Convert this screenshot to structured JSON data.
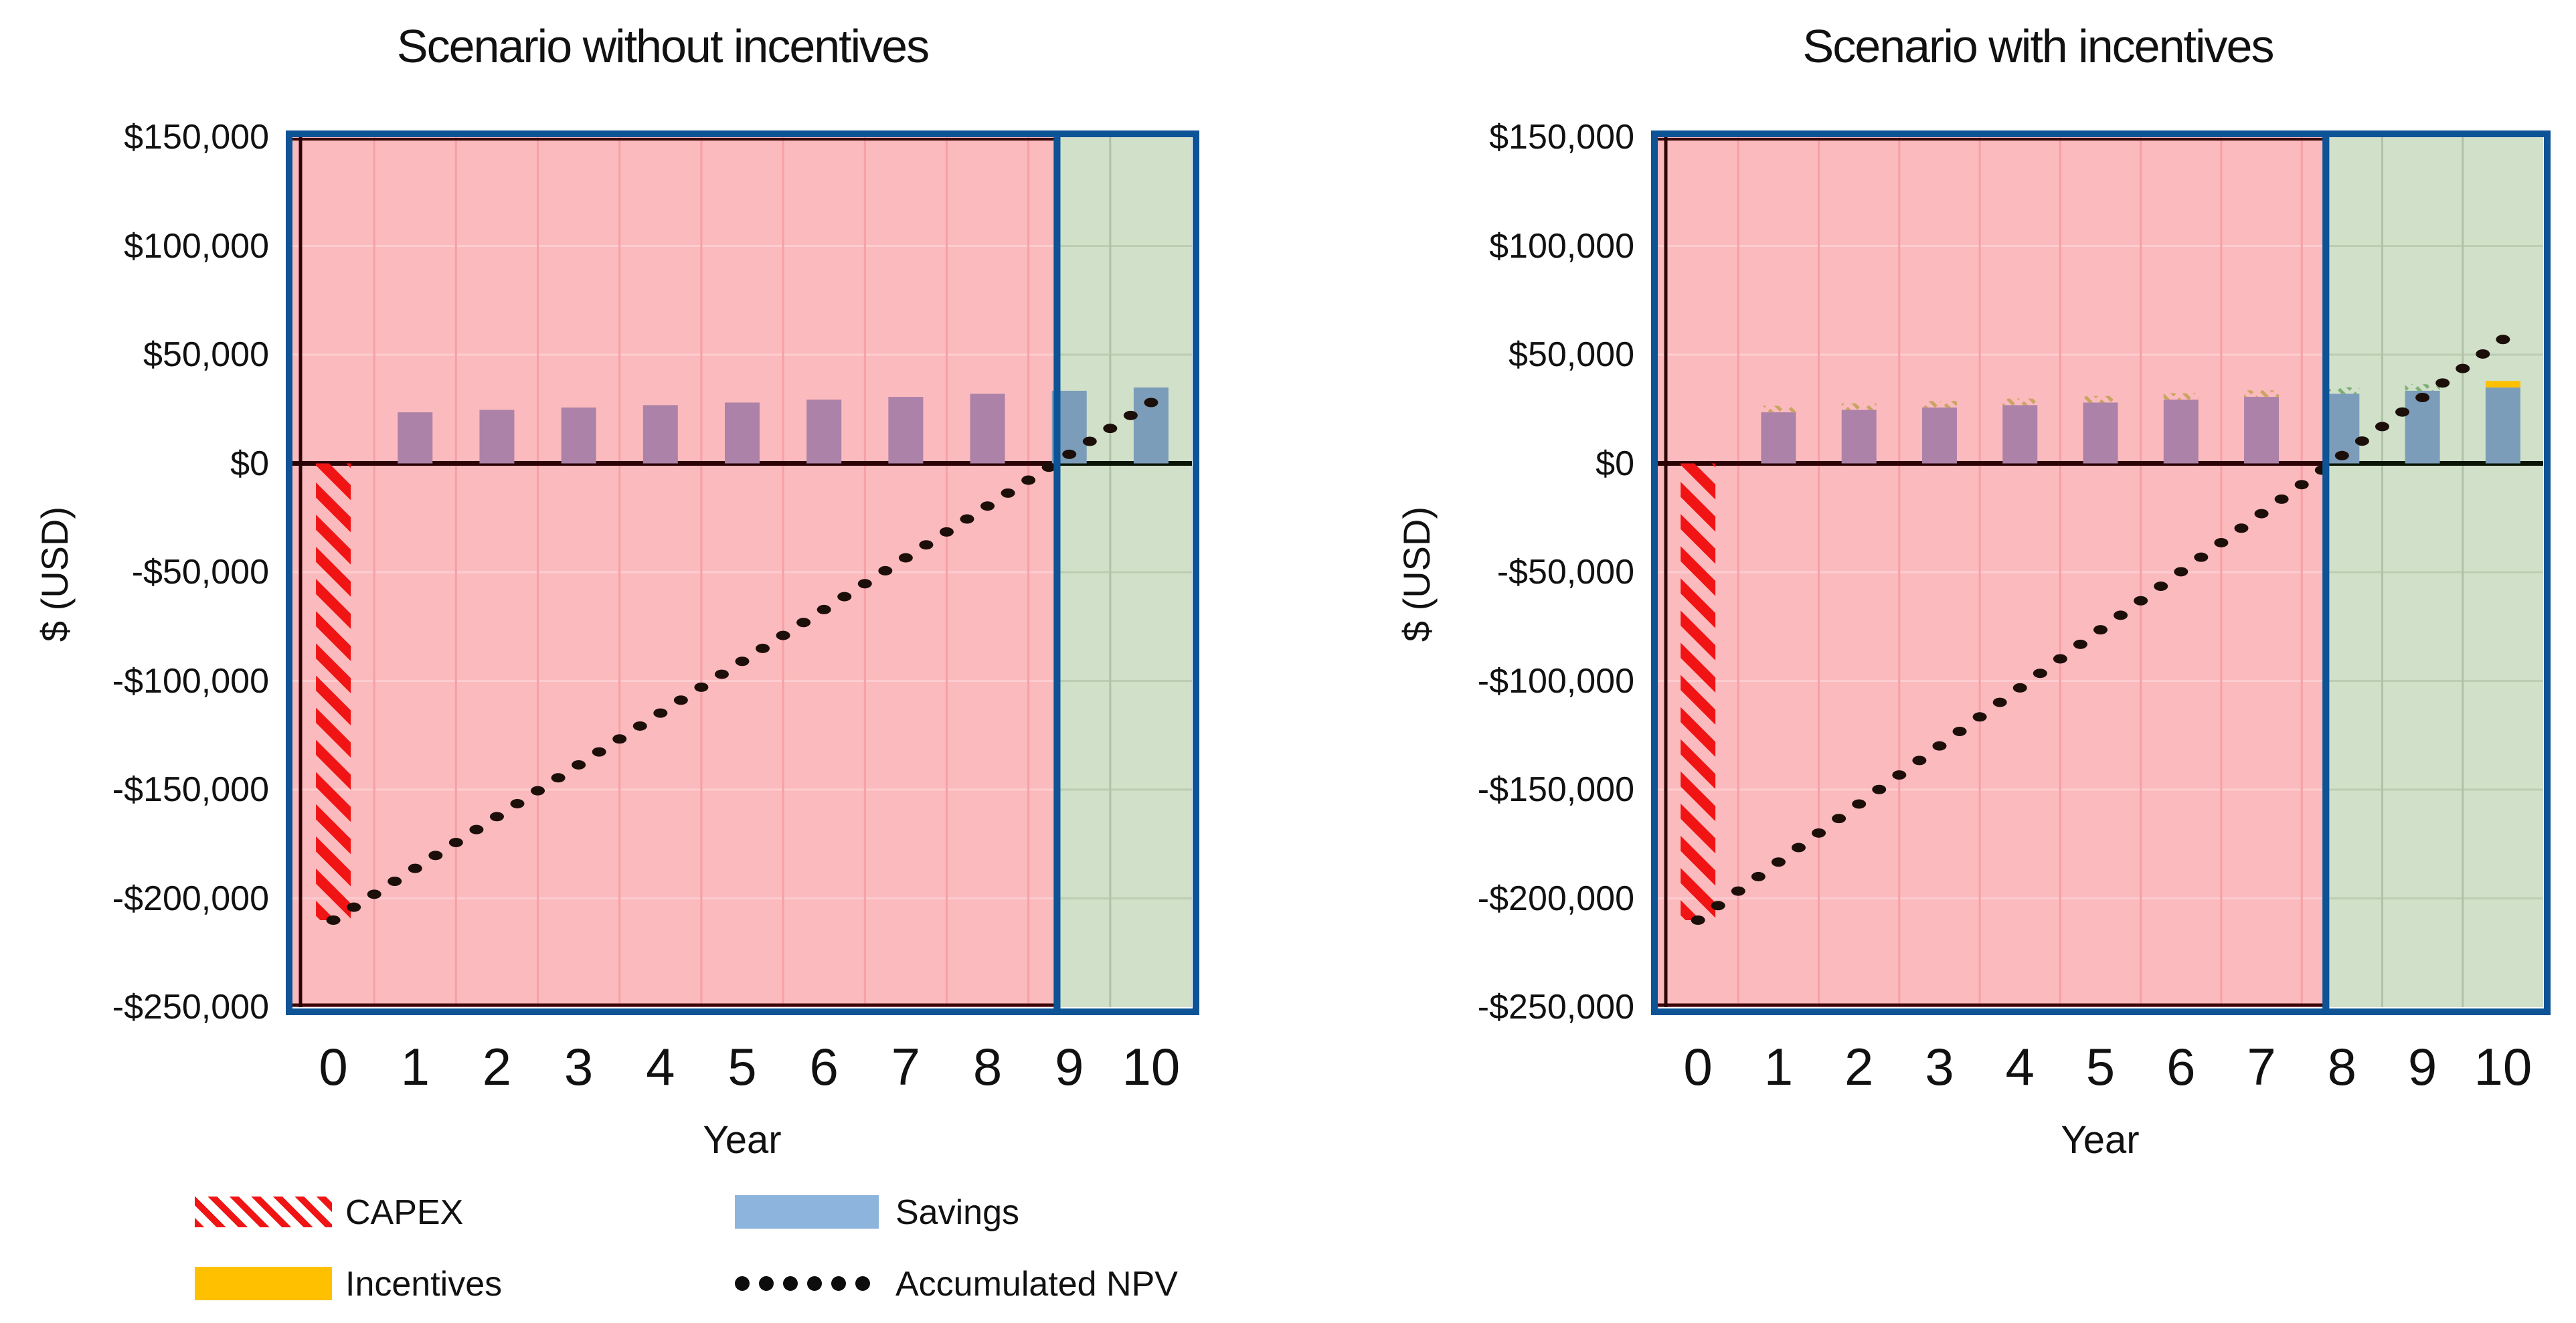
{
  "colors": {
    "plot_border": "#0d5396",
    "negative_region": "#fbbabd",
    "positive_region": "#d1e0c9",
    "grid_negative_v": "#f6a0a5",
    "grid_negative_h": "#fccdd0",
    "grid_positive_v": "#b0c2a8",
    "grid_positive_h": "#bccdb4",
    "axis_dark_line": "#3c0508",
    "zero_line_negative": "#2c0406",
    "zero_line_positive": "#0a1505",
    "capex_hatch_red": "#f01414",
    "savings_bar_shaded_red": "#ac82a8",
    "savings_bar_shaded_green": "#7c9db9",
    "savings_legend_blue": "#8db4dc",
    "incentives_gold": "#ffc000",
    "incentive_tip_tan": "#c8a562",
    "incentive_tip_green": "#7fae74",
    "npv_dot": "#1c0f0a"
  },
  "legend": [
    {
      "label": "CAPEX",
      "swatch": "red-diagonal-hatch"
    },
    {
      "label": "Savings",
      "swatch": "solid-blue"
    },
    {
      "label": "Incentives",
      "swatch": "solid-gold"
    },
    {
      "label": "Accumulated NPV",
      "swatch": "black-dot-line"
    }
  ],
  "chart_data": [
    {
      "type": "bar",
      "title": "Scenario without incentives",
      "xlabel": "Year",
      "ylabel": "$ (USD)",
      "x": [
        0,
        1,
        2,
        3,
        4,
        5,
        6,
        7,
        8,
        9,
        10
      ],
      "x_ticks": [
        "0",
        "1",
        "2",
        "3",
        "4",
        "5",
        "6",
        "7",
        "8",
        "9",
        "10"
      ],
      "y_ticks": [
        "$150,000",
        "$100,000",
        "$50,000",
        "$0",
        "-$50,000",
        "-$100,000",
        "-$150,000",
        "-$200,000",
        "-$250,000"
      ],
      "ylim": [
        -250000,
        150000
      ],
      "y_tick_step": 50000,
      "grid": true,
      "legend_position": "below-left",
      "payback_year": 8.85,
      "regions": {
        "negative_npv": "red shaded, year 0 to 8.85",
        "positive_npv": "green shaded, year 8.85 to 10"
      },
      "series": [
        {
          "name": "CAPEX",
          "values": [
            -210000,
            0,
            0,
            0,
            0,
            0,
            0,
            0,
            0,
            0,
            0
          ]
        },
        {
          "name": "Savings",
          "values": [
            0,
            23500,
            24600,
            25700,
            26800,
            28000,
            29300,
            30600,
            32000,
            33400,
            34900
          ]
        },
        {
          "name": "Incentives",
          "values": [
            0,
            0,
            0,
            0,
            0,
            0,
            0,
            0,
            0,
            0,
            0
          ]
        },
        {
          "name": "Accumulated NPV",
          "values": [
            -210000,
            -186200,
            -162400,
            -138600,
            -114800,
            -91000,
            -67200,
            -43400,
            -19600,
            4200,
            28000
          ]
        }
      ]
    },
    {
      "type": "bar",
      "title": "Scenario with incentives",
      "xlabel": "Year",
      "ylabel": "$ (USD)",
      "x": [
        0,
        1,
        2,
        3,
        4,
        5,
        6,
        7,
        8,
        9,
        10
      ],
      "x_ticks": [
        "0",
        "1",
        "2",
        "3",
        "4",
        "5",
        "6",
        "7",
        "8",
        "9",
        "10"
      ],
      "y_ticks": [
        "$150,000",
        "$100,000",
        "$50,000",
        "$0",
        "-$50,000",
        "-$100,000",
        "-$150,000",
        "-$200,000",
        "-$250,000"
      ],
      "ylim": [
        -250000,
        150000
      ],
      "y_tick_step": 50000,
      "grid": true,
      "legend_position": "none",
      "payback_year": 7.8,
      "regions": {
        "negative_npv": "red shaded, year 0 to 7.8",
        "positive_npv": "green shaded, year 7.8 to 10"
      },
      "series": [
        {
          "name": "CAPEX",
          "values": [
            -210000,
            0,
            0,
            0,
            0,
            0,
            0,
            0,
            0,
            0,
            0
          ]
        },
        {
          "name": "Savings",
          "values": [
            0,
            23500,
            24600,
            25700,
            26800,
            28000,
            29300,
            30600,
            32000,
            33400,
            34900
          ]
        },
        {
          "name": "Incentives",
          "values": [
            0,
            3000,
            3000,
            3000,
            3000,
            3000,
            3000,
            3000,
            3000,
            3000,
            3000
          ]
        },
        {
          "name": "Accumulated NPV",
          "values": [
            -210000,
            -183300,
            -156600,
            -129900,
            -103200,
            -76500,
            -49800,
            -23100,
            3600,
            30300,
            57000
          ]
        }
      ]
    }
  ]
}
